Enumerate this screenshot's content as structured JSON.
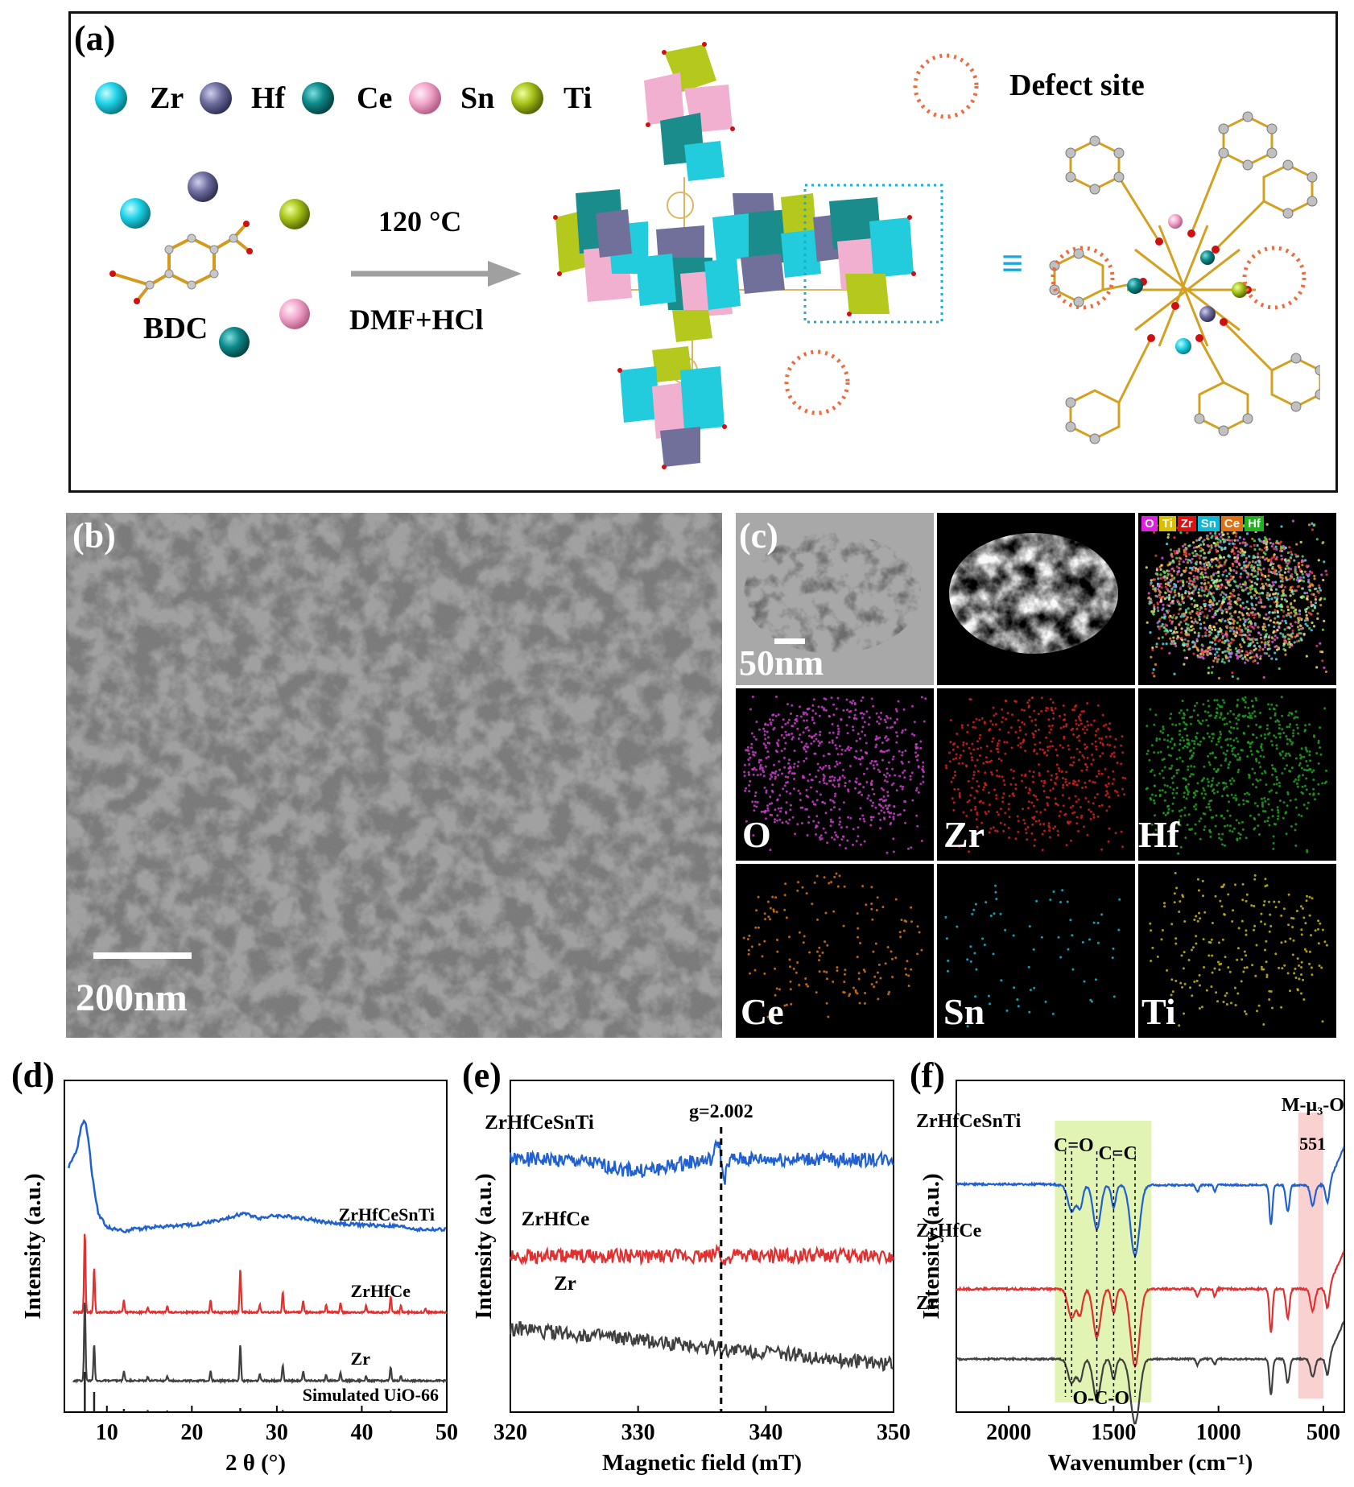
{
  "panel_a": {
    "label": "(a)",
    "legend": [
      {
        "symbol": "Zr",
        "color": "#1fd3e8"
      },
      {
        "symbol": "Hf",
        "color": "#6f6fa0"
      },
      {
        "symbol": "Ce",
        "color": "#0e8a8a"
      },
      {
        "symbol": "Sn",
        "color": "#f2a8cc"
      },
      {
        "symbol": "Ti",
        "color": "#a7c41a"
      }
    ],
    "defect_label": "Defect site",
    "linker_label": "BDC",
    "temperature": "120 °C",
    "solvent": "DMF+HCl",
    "equiv_symbol": "≡"
  },
  "panel_b": {
    "label": "(b)",
    "scale_bar": "200nm"
  },
  "panel_c": {
    "label": "(c)",
    "scale_bar": "50nm",
    "map_chips": [
      {
        "text": "O",
        "color": "#e020e0"
      },
      {
        "text": "Ti",
        "color": "#d8c000"
      },
      {
        "text": "Zr",
        "color": "#e01010"
      },
      {
        "text": "Sn",
        "color": "#10b8d8"
      },
      {
        "text": "Ce",
        "color": "#e07010"
      },
      {
        "text": "Hf",
        "color": "#20b020"
      }
    ],
    "maps": [
      {
        "element": "O",
        "color": "#c83cc8"
      },
      {
        "element": "Zr",
        "color": "#d02020"
      },
      {
        "element": "Hf",
        "color": "#20a020"
      },
      {
        "element": "Ce",
        "color": "#d8741c"
      },
      {
        "element": "Sn",
        "color": "#18b8d0"
      },
      {
        "element": "Ti",
        "color": "#c8b818"
      }
    ]
  },
  "chart_data": [
    {
      "id": "d",
      "label": "(d)",
      "type": "line",
      "xlabel": "2 θ (°)",
      "ylabel": "Intensity (a.u.)",
      "xlim": [
        5,
        50
      ],
      "xticks": [
        10,
        20,
        30,
        40,
        50
      ],
      "series": [
        {
          "name": "ZrHfCeSnTi",
          "color": "#2060d0",
          "x": [
            5.5,
            6.5,
            7.0,
            7.4,
            7.8,
            8.3,
            9.0,
            10,
            12,
            15,
            20,
            24,
            26,
            28,
            30,
            33,
            36,
            40,
            44,
            47,
            50
          ],
          "y": [
            0.6,
            0.75,
            0.95,
            1.0,
            0.85,
            0.5,
            0.2,
            0.08,
            0.05,
            0.08,
            0.1,
            0.15,
            0.2,
            0.16,
            0.18,
            0.16,
            0.12,
            0.1,
            0.09,
            0.06,
            0.06
          ]
        },
        {
          "name": "ZrHfCe",
          "color": "#e03030",
          "peaks": [
            [
              7.4,
              1.0
            ],
            [
              8.5,
              0.55
            ],
            [
              12.0,
              0.15
            ],
            [
              14.8,
              0.06
            ],
            [
              17.1,
              0.08
            ],
            [
              22.2,
              0.15
            ],
            [
              25.7,
              0.55
            ],
            [
              28.0,
              0.1
            ],
            [
              30.7,
              0.25
            ],
            [
              33.1,
              0.15
            ],
            [
              35.8,
              0.1
            ],
            [
              37.5,
              0.12
            ],
            [
              40.5,
              0.08
            ],
            [
              43.4,
              0.2
            ],
            [
              44.6,
              0.08
            ],
            [
              47.5,
              0.05
            ]
          ]
        },
        {
          "name": "Zr",
          "color": "#404040",
          "peaks": [
            [
              7.4,
              1.0
            ],
            [
              8.5,
              0.45
            ],
            [
              12.0,
              0.12
            ],
            [
              14.8,
              0.05
            ],
            [
              17.1,
              0.06
            ],
            [
              22.2,
              0.12
            ],
            [
              25.7,
              0.45
            ],
            [
              28.0,
              0.08
            ],
            [
              30.7,
              0.2
            ],
            [
              33.1,
              0.12
            ],
            [
              35.8,
              0.08
            ],
            [
              37.5,
              0.1
            ],
            [
              40.5,
              0.06
            ],
            [
              43.4,
              0.17
            ],
            [
              44.6,
              0.06
            ]
          ]
        },
        {
          "name": "Simulated UiO-66",
          "color": "#222222",
          "sticks": [
            [
              7.4,
              1.0
            ],
            [
              8.5,
              0.5
            ],
            [
              12.0,
              0.08
            ],
            [
              14.8,
              0.05
            ],
            [
              17.1,
              0.04
            ],
            [
              25.7,
              0.1
            ],
            [
              30.7,
              0.05
            ],
            [
              43.4,
              0.04
            ]
          ]
        }
      ]
    },
    {
      "id": "e",
      "label": "(e)",
      "type": "line",
      "xlabel": "Magnetic field (mT)",
      "ylabel": "Intensity (a.u.)",
      "xlim": [
        320,
        350
      ],
      "xticks": [
        320,
        330,
        340,
        350
      ],
      "annotation": {
        "text": "g=2.002",
        "x": 336.5
      },
      "series": [
        {
          "name": "ZrHfCeSnTi",
          "color": "#2060d0",
          "kind": "epr",
          "amplitude": 1.0,
          "baseline_dip": true
        },
        {
          "name": "ZrHfCe",
          "color": "#e03030",
          "kind": "epr",
          "amplitude": 0.35
        },
        {
          "name": "Zr",
          "color": "#404040",
          "kind": "epr",
          "amplitude": 0.15,
          "slope": true
        }
      ]
    },
    {
      "id": "f",
      "label": "(f)",
      "type": "line",
      "xlabel": "Wavenumber (cm⁻¹)",
      "ylabel": "Intensity (a.u.)",
      "xlim": [
        2250,
        400
      ],
      "xticks": [
        2000,
        1500,
        1000,
        500
      ],
      "bands": [
        {
          "name": "C=O",
          "x": 1700
        },
        {
          "name": "C=C",
          "x": 1500
        },
        {
          "name": "O-C-O",
          "x": 1580
        }
      ],
      "band_labels": {
        "co": "C=O",
        "cc": "C=C",
        "oco": "O-C-O",
        "mu3": "M-μ₃-O",
        "peak": "551"
      },
      "highlight_regions": [
        [
          1780,
          1320
        ],
        [
          620,
          500
        ]
      ],
      "series": [
        {
          "name": "ZrHfCeSnTi",
          "color": "#2060d0"
        },
        {
          "name": "ZrHfCe",
          "color": "#e03030"
        },
        {
          "name": "Zr",
          "color": "#404040"
        }
      ]
    }
  ]
}
